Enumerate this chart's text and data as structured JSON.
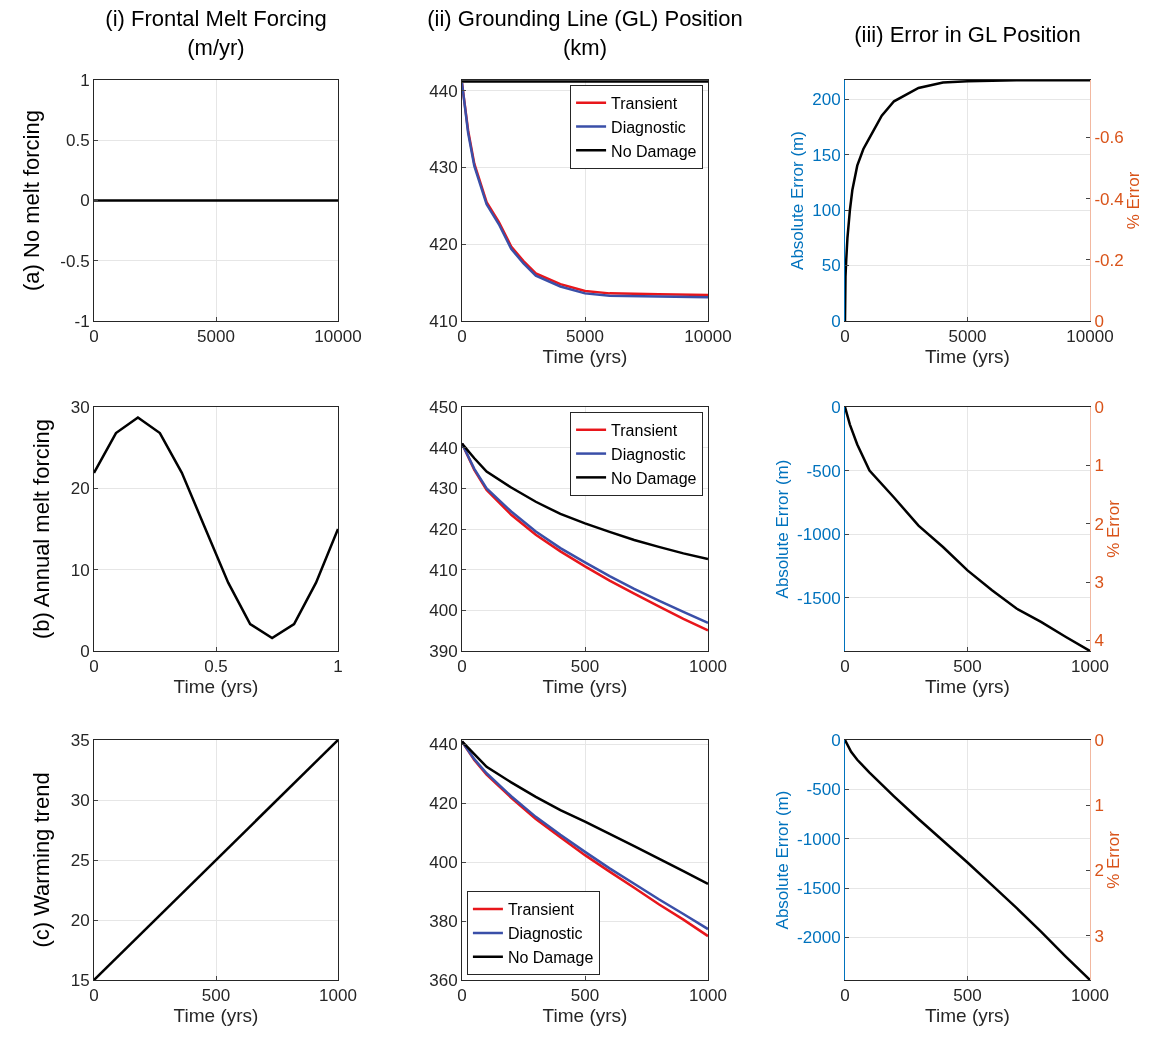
{
  "chart_data": [
    {
      "type": "line",
      "title": "(i) Frontal Melt Forcing\n(m/yr)",
      "ylabel": "(a) No melt forcing",
      "xlim": [
        0,
        10000
      ],
      "xticks": [
        0,
        5000,
        10000
      ],
      "ylim": [
        -1,
        1
      ],
      "yticks": [
        -1,
        -0.5,
        0,
        0.5,
        1
      ],
      "grid": true,
      "x": [
        0,
        10000
      ],
      "series": [
        {
          "color": "#000000",
          "values": [
            0,
            0
          ]
        }
      ]
    },
    {
      "type": "line",
      "title": "(ii) Grounding Line (GL) Position\n(km)",
      "xlabel": "Time (yrs)",
      "xlim": [
        0,
        10000
      ],
      "xticks": [
        0,
        5000,
        10000
      ],
      "ylim": [
        410,
        441.4
      ],
      "yticks": [
        410,
        420,
        430,
        440
      ],
      "grid": true,
      "legend": "top right",
      "x": [
        0,
        250,
        500,
        1000,
        1500,
        2000,
        2500,
        3000,
        4000,
        5000,
        6000,
        8000,
        10000
      ],
      "series": [
        {
          "name": "Transient",
          "color": "#e8161b",
          "values": [
            441,
            434.8,
            430.5,
            425.5,
            422.9,
            419.7,
            417.8,
            416.2,
            414.8,
            413.9,
            413.6,
            413.5,
            413.4
          ]
        },
        {
          "name": "Diagnostic",
          "color": "#3a4fa8",
          "values": [
            441,
            434.5,
            430.2,
            425.2,
            422.6,
            419.4,
            417.5,
            415.9,
            414.5,
            413.6,
            413.3,
            413.2,
            413.1
          ]
        },
        {
          "name": "No Damage",
          "color": "#000000",
          "x": [
            0,
            10000
          ],
          "values": [
            441.2,
            441.2
          ]
        }
      ]
    },
    {
      "type": "line",
      "title": "(iii) Error in GL Position",
      "xlabel": "Time (yrs)",
      "ylabel": "Absolute Error (m)",
      "y2label": "% Error",
      "xlim": [
        0,
        10000
      ],
      "xticks": [
        0,
        5000,
        10000
      ],
      "ylim": [
        0,
        217.2
      ],
      "yticks": [
        0,
        50,
        100,
        150,
        200
      ],
      "y2lim": [
        0,
        -0.788
      ],
      "y2ticks": [
        0,
        -0.2,
        -0.4,
        -0.6
      ],
      "grid": true,
      "x": [
        0,
        20,
        50,
        100,
        200,
        300,
        500,
        750,
        1000,
        1500,
        2000,
        3000,
        4000,
        5000,
        7000,
        10000
      ],
      "series": [
        {
          "color": "#000000",
          "values": [
            0,
            40,
            55,
            75,
            100,
            118,
            140,
            155,
            165,
            185,
            198,
            210,
            215,
            216,
            217,
            217
          ]
        }
      ]
    },
    {
      "type": "line",
      "ylabel": "(b) Annual melt forcing",
      "xlabel": "Time (yrs)",
      "xlim": [
        0,
        1
      ],
      "xticks": [
        0,
        0.5,
        1
      ],
      "ylim": [
        0,
        30
      ],
      "yticks": [
        0,
        10,
        20,
        30
      ],
      "grid": true,
      "x": [
        0,
        0.09,
        0.18,
        0.27,
        0.36,
        0.45,
        0.55,
        0.64,
        0.73,
        0.82,
        0.91,
        1
      ],
      "series": [
        {
          "color": "#000000",
          "values": [
            21.9,
            26.8,
            28.7,
            26.8,
            21.9,
            15.5,
            8.4,
            3.3,
            1.6,
            3.3,
            8.4,
            15
          ]
        }
      ]
    },
    {
      "type": "line",
      "xlabel": "Time (yrs)",
      "xlim": [
        0,
        1000
      ],
      "xticks": [
        0,
        500,
        1000
      ],
      "ylim": [
        390,
        450
      ],
      "yticks": [
        390,
        400,
        410,
        420,
        430,
        440,
        450
      ],
      "grid": true,
      "legend": "top right",
      "x": [
        0,
        50,
        100,
        200,
        300,
        400,
        500,
        600,
        700,
        800,
        900,
        1000
      ],
      "series": [
        {
          "name": "Transient",
          "color": "#e8161b",
          "values": [
            441,
            434.5,
            429.6,
            423.5,
            418.6,
            414.5,
            410.8,
            407.3,
            404.1,
            401,
            397.9,
            395.1
          ]
        },
        {
          "name": "Diagnostic",
          "color": "#3a4fa8",
          "values": [
            441,
            434.8,
            430,
            424.3,
            419.4,
            415.3,
            411.8,
            408.4,
            405.3,
            402.4,
            399.6,
            396.9
          ]
        },
        {
          "name": "No Damage",
          "color": "#000000",
          "values": [
            441,
            437.4,
            434.1,
            430.2,
            426.7,
            423.7,
            421.4,
            419.3,
            417.3,
            415.6,
            414,
            412.6
          ]
        }
      ]
    },
    {
      "type": "line",
      "xlabel": "Time (yrs)",
      "ylabel": "Absolute Error (m)",
      "y2label": "% Error",
      "xlim": [
        0,
        1000
      ],
      "xticks": [
        0,
        500,
        1000
      ],
      "ylim": [
        -1917,
        0
      ],
      "yticks": [
        -1500,
        -1000,
        -500,
        0
      ],
      "y2lim": [
        4.18,
        0
      ],
      "y2ticks": [
        0,
        1,
        2,
        3,
        4
      ],
      "grid": true,
      "x": [
        0,
        20,
        50,
        100,
        200,
        300,
        400,
        500,
        600,
        700,
        800,
        900,
        1000
      ],
      "series": [
        {
          "color": "#000000",
          "values": [
            0,
            -138,
            -294,
            -500,
            -711,
            -932,
            -1100,
            -1284,
            -1440,
            -1583,
            -1688,
            -1805,
            -1917
          ]
        }
      ]
    },
    {
      "type": "line",
      "ylabel": "(c) Warming trend",
      "xlabel": "Time (yrs)",
      "xlim": [
        0,
        1000
      ],
      "xticks": [
        0,
        500,
        1000
      ],
      "ylim": [
        15,
        35
      ],
      "yticks": [
        15,
        20,
        25,
        30,
        35
      ],
      "grid": true,
      "x": [
        0,
        1000
      ],
      "series": [
        {
          "color": "#000000",
          "values": [
            15,
            35
          ]
        }
      ]
    },
    {
      "type": "line",
      "xlabel": "Time (yrs)",
      "xlim": [
        0,
        1000
      ],
      "xticks": [
        0,
        500,
        1000
      ],
      "ylim": [
        360,
        441.5
      ],
      "yticks": [
        360,
        380,
        400,
        420,
        440
      ],
      "grid": true,
      "legend": "bottom left",
      "x": [
        0,
        50,
        100,
        200,
        300,
        400,
        500,
        600,
        700,
        800,
        900,
        1000
      ],
      "series": [
        {
          "name": "Transient",
          "color": "#e8161b",
          "values": [
            441,
            434.7,
            429.7,
            421.9,
            414.7,
            408.5,
            402.4,
            396.8,
            391.3,
            385.7,
            380.5,
            374.9
          ]
        },
        {
          "name": "Diagnostic",
          "color": "#3a4fa8",
          "values": [
            441,
            435,
            430.2,
            422.4,
            415.4,
            409.3,
            403.5,
            397.9,
            392.7,
            387.4,
            382.4,
            377.3
          ]
        },
        {
          "name": "No Damage",
          "color": "#000000",
          "values": [
            441,
            436.7,
            432.4,
            427.1,
            422.2,
            417.7,
            413.8,
            409.6,
            405.5,
            401.2,
            397,
            392.6
          ]
        }
      ]
    },
    {
      "type": "line",
      "xlabel": "Time (yrs)",
      "ylabel": "Absolute Error (m)",
      "y2label": "% Error",
      "xlim": [
        0,
        1000
      ],
      "xticks": [
        0,
        500,
        1000
      ],
      "ylim": [
        -2430,
        0
      ],
      "yticks": [
        -2000,
        -1500,
        -1000,
        -500,
        0
      ],
      "y2lim": [
        3.68,
        0
      ],
      "y2ticks": [
        0,
        1,
        2,
        3
      ],
      "grid": true,
      "x": [
        0,
        25,
        50,
        100,
        200,
        300,
        400,
        500,
        600,
        700,
        800,
        900,
        1000
      ],
      "series": [
        {
          "color": "#000000",
          "values": [
            0,
            -120,
            -200,
            -330,
            -570,
            -800,
            -1020,
            -1240,
            -1470,
            -1700,
            -1940,
            -2190,
            -2430
          ]
        }
      ]
    }
  ]
}
